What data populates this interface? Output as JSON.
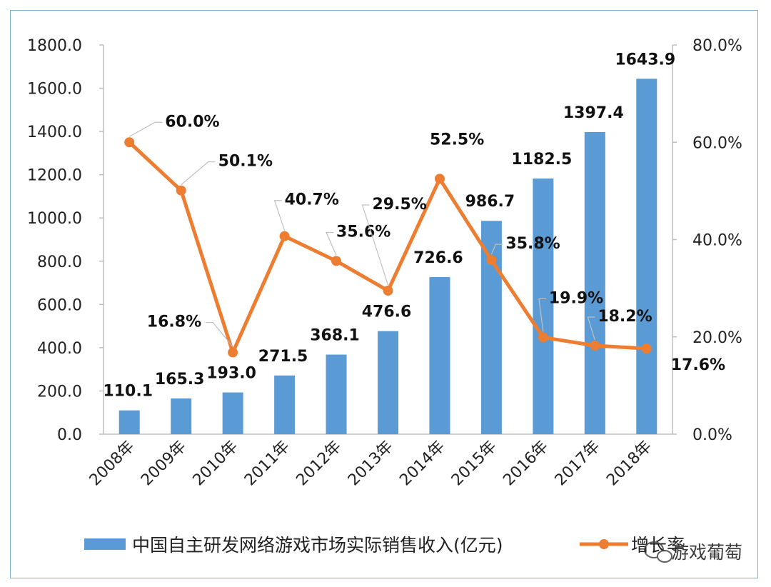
{
  "chart_data": {
    "type": "bar",
    "categories": [
      "2008年",
      "2009年",
      "2010年",
      "2011年",
      "2012年",
      "2013年",
      "2014年",
      "2015年",
      "2016年",
      "2017年",
      "2018年"
    ],
    "series": [
      {
        "name": "中国自主研发网络游戏市场实际销售收入(亿元)",
        "type": "bar",
        "axis": "left",
        "color": "#5b9bd5",
        "values": [
          110.1,
          165.3,
          193.0,
          271.5,
          368.1,
          476.6,
          726.6,
          986.7,
          1182.5,
          1397.4,
          1643.9
        ],
        "labels": [
          "110.1",
          "165.3",
          "193.0",
          "271.5",
          "368.1",
          "476.6",
          "726.6",
          "986.7",
          "1182.5",
          "1397.4",
          "1643.9"
        ]
      },
      {
        "name": "增长率",
        "type": "line",
        "axis": "right",
        "color": "#ed7d31",
        "values": [
          60.0,
          50.1,
          16.8,
          40.7,
          35.6,
          29.5,
          52.5,
          35.8,
          19.9,
          18.2,
          17.6
        ],
        "labels": [
          "60.0%",
          "50.1%",
          "16.8%",
          "40.7%",
          "35.6%",
          "29.5%",
          "52.5%",
          "35.8%",
          "19.9%",
          "18.2%",
          "17.6%"
        ]
      }
    ],
    "y_left": {
      "ylim": [
        0,
        1800
      ],
      "ticks": [
        "0.0",
        "200.0",
        "400.0",
        "600.0",
        "800.0",
        "1000.0",
        "1200.0",
        "1400.0",
        "1600.0",
        "1800.0"
      ]
    },
    "y_right": {
      "ylim": [
        0,
        80
      ],
      "ticks": [
        "0.0%",
        "20.0%",
        "40.0%",
        "60.0%",
        "80.0%"
      ]
    },
    "grid": false,
    "legend": "bottom"
  },
  "watermark": {
    "text": "游戏葡萄",
    "icon": "wechat-icon"
  }
}
